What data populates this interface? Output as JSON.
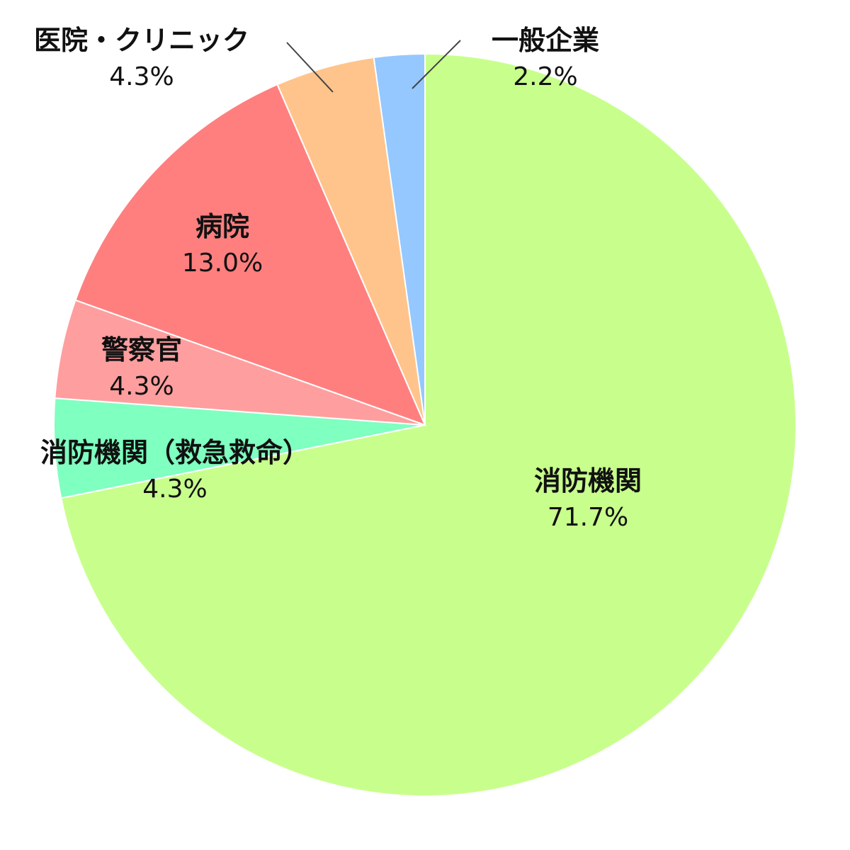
{
  "chart_data": {
    "type": "pie",
    "start": "12 o'clock",
    "direction": "clockwise",
    "slices": [
      {
        "label": "消防機関",
        "value": 71.7,
        "value_label": "71.7%",
        "color": "#c8ff8c"
      },
      {
        "label": "消防機関（救急救命）",
        "value": 4.3,
        "value_label": "4.3%",
        "color": "#7fffc0"
      },
      {
        "label": "警察官",
        "value": 4.3,
        "value_label": "4.3%",
        "color": "#ff9e9e"
      },
      {
        "label": "病院",
        "value": 13.0,
        "value_label": "13.0%",
        "color": "#ff7f7f"
      },
      {
        "label": "医院・クリニック",
        "value": 4.3,
        "value_label": "4.3%",
        "color": "#ffc48c"
      },
      {
        "label": "一般企業",
        "value": 2.2,
        "value_label": "2.2%",
        "color": "#94c8ff"
      }
    ]
  }
}
